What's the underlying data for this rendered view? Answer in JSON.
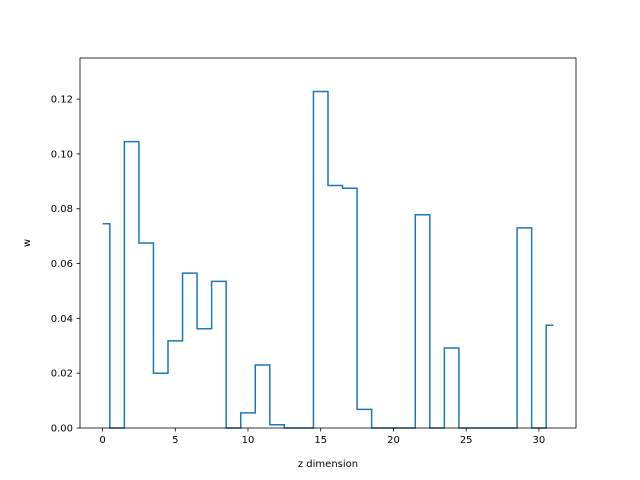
{
  "chart_data": {
    "type": "line",
    "drawstyle": "steps-mid",
    "xlabel": "z dimension",
    "ylabel": "w",
    "xlim": [
      -1.55,
      32.55
    ],
    "ylim": [
      0.0,
      0.135
    ],
    "xticks": [
      0,
      5,
      10,
      15,
      20,
      25,
      30
    ],
    "yticks": [
      0.0,
      0.02,
      0.04,
      0.06,
      0.08,
      0.1,
      0.12
    ],
    "xtick_labels": [
      "0",
      "5",
      "10",
      "15",
      "20",
      "25",
      "30"
    ],
    "ytick_labels": [
      "0.00",
      "0.02",
      "0.04",
      "0.06",
      "0.08",
      "0.10",
      "0.12"
    ],
    "grid": false,
    "line_color": "#1f77b4",
    "x": [
      0,
      1,
      2,
      3,
      4,
      5,
      6,
      7,
      8,
      9,
      10,
      11,
      12,
      13,
      14,
      15,
      16,
      17,
      18,
      19,
      20,
      21,
      22,
      23,
      24,
      25,
      26,
      27,
      28,
      29,
      30,
      31
    ],
    "values": [
      0.0745,
      0.0,
      0.1045,
      0.0675,
      0.02,
      0.0318,
      0.0565,
      0.0362,
      0.0535,
      0.0,
      0.0055,
      0.023,
      0.0012,
      0.0,
      0.0,
      0.1228,
      0.0885,
      0.0875,
      0.0068,
      0.0,
      0.0,
      0.0,
      0.0778,
      0.0,
      0.0292,
      0.0,
      0.0,
      0.0,
      0.0,
      0.073,
      0.0,
      0.0375
    ]
  }
}
